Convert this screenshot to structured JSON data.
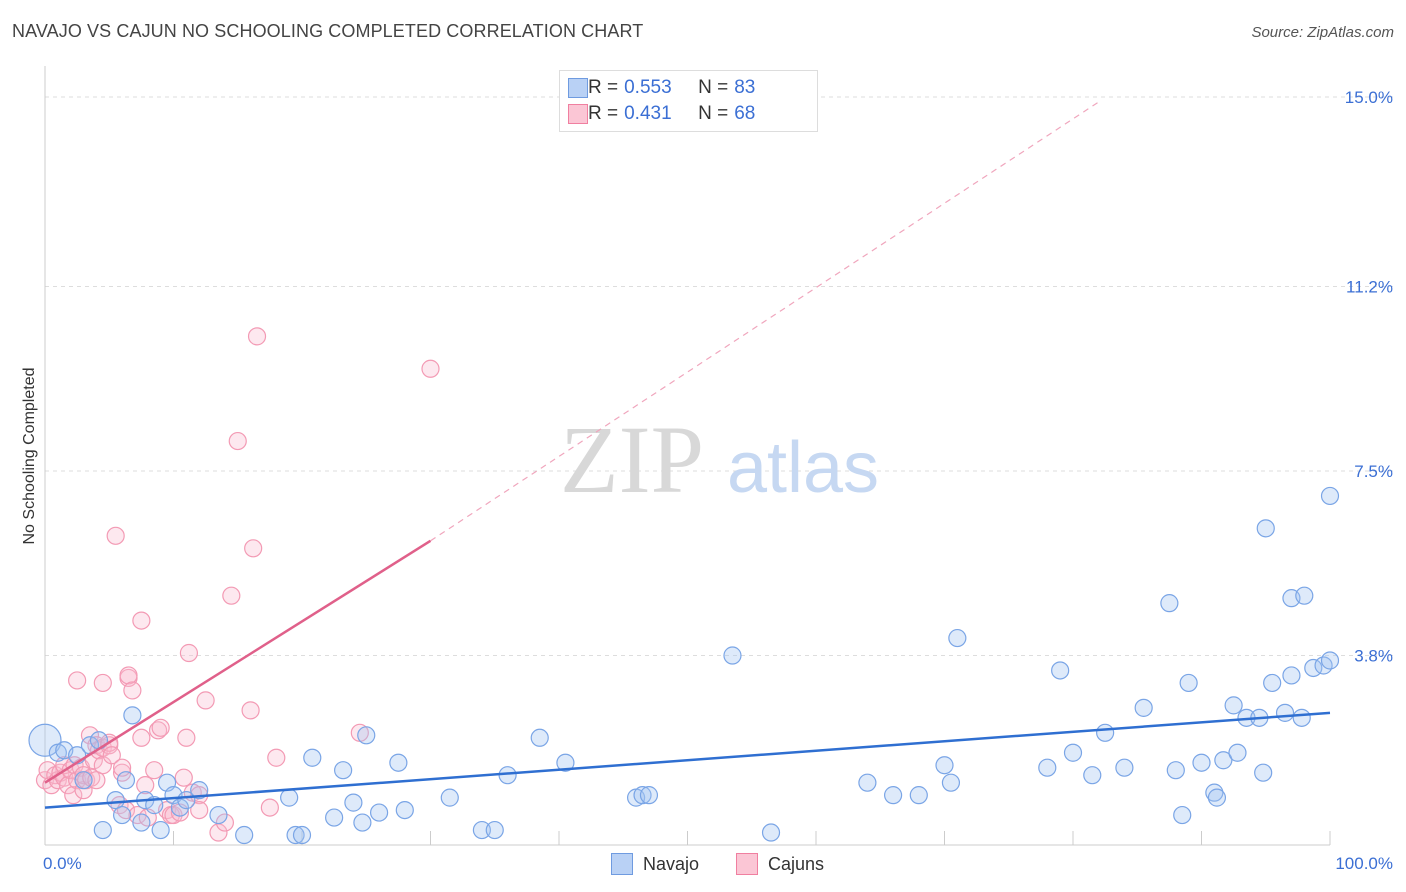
{
  "header": {
    "title": "NAVAJO VS CAJUN NO SCHOOLING COMPLETED CORRELATION CHART",
    "source": "Source: ZipAtlas.com"
  },
  "watermark": {
    "zip": "ZIP",
    "atlas": "atlas"
  },
  "legend_top": {
    "r_label": "R =",
    "n_label": "N =",
    "rows": [
      {
        "r": "0.553",
        "n": "83",
        "color": "#6f9be0",
        "fill": "#b9d1f5"
      },
      {
        "r": "0.431",
        "n": "68",
        "color": "#f07fa0",
        "fill": "#fbc6d5"
      }
    ]
  },
  "legend_bottom": {
    "navajo": "Navajo",
    "cajuns": "Cajuns"
  },
  "colors": {
    "navajo_stroke": "#7aa5e6",
    "navajo_fill": "rgba(160,195,240,0.35)",
    "navajo_line": "#2f6fd1",
    "cajun_stroke": "#f39ab4",
    "cajun_fill": "rgba(250,190,208,0.35)",
    "cajun_line": "#e0608a",
    "grid": "#dddddd",
    "tick_label": "#3b6fd4"
  },
  "chart_data": {
    "type": "scatter",
    "title": "NAVAJO VS CAJUN NO SCHOOLING COMPLETED CORRELATION CHART",
    "xlabel": "",
    "ylabel": "No Schooling Completed",
    "xlim": [
      0,
      100
    ],
    "ylim": [
      0,
      15.0
    ],
    "x_tick_labels": [
      "0.0%",
      "100.0%"
    ],
    "y_ticks": [
      3.8,
      7.5,
      11.2,
      15.0
    ],
    "y_tick_labels": [
      "3.8%",
      "7.5%",
      "11.2%",
      "15.0%"
    ],
    "series": [
      {
        "name": "Navajo",
        "r": 0.553,
        "n": 83,
        "trend": {
          "x": [
            0,
            100
          ],
          "y": [
            0.75,
            2.65
          ]
        },
        "points": [
          [
            0.0,
            2.1
          ],
          [
            1.0,
            1.85
          ],
          [
            1.5,
            1.9
          ],
          [
            2.5,
            1.8
          ],
          [
            3.0,
            1.3
          ],
          [
            3.5,
            2.0
          ],
          [
            4.2,
            2.1
          ],
          [
            4.5,
            0.3
          ],
          [
            5.5,
            0.9
          ],
          [
            6.0,
            0.6
          ],
          [
            6.3,
            1.3
          ],
          [
            6.8,
            2.6
          ],
          [
            7.5,
            0.45
          ],
          [
            7.8,
            0.9
          ],
          [
            8.5,
            0.8
          ],
          [
            9.0,
            0.3
          ],
          [
            9.5,
            1.25
          ],
          [
            10.0,
            1.0
          ],
          [
            10.5,
            0.75
          ],
          [
            11.0,
            0.9
          ],
          [
            12.0,
            1.1
          ],
          [
            13.5,
            0.6
          ],
          [
            15.5,
            0.2
          ],
          [
            19.0,
            0.95
          ],
          [
            19.5,
            0.2
          ],
          [
            20.0,
            0.2
          ],
          [
            20.8,
            1.75
          ],
          [
            22.5,
            0.55
          ],
          [
            23.2,
            1.5
          ],
          [
            24.0,
            0.85
          ],
          [
            24.7,
            0.45
          ],
          [
            25.0,
            2.2
          ],
          [
            26.0,
            0.65
          ],
          [
            27.5,
            1.65
          ],
          [
            28.0,
            0.7
          ],
          [
            31.5,
            0.95
          ],
          [
            34.0,
            0.3
          ],
          [
            35.0,
            0.3
          ],
          [
            36.0,
            1.4
          ],
          [
            38.5,
            2.15
          ],
          [
            40.5,
            1.65
          ],
          [
            46.0,
            0.95
          ],
          [
            46.5,
            1.0
          ],
          [
            47.0,
            1.0
          ],
          [
            53.5,
            3.8
          ],
          [
            56.5,
            0.25
          ],
          [
            64.0,
            1.25
          ],
          [
            66.0,
            1.0
          ],
          [
            68.0,
            1.0
          ],
          [
            70.0,
            1.6
          ],
          [
            70.5,
            1.25
          ],
          [
            71.0,
            4.15
          ],
          [
            78.0,
            1.55
          ],
          [
            79.0,
            3.5
          ],
          [
            80.0,
            1.85
          ],
          [
            81.5,
            1.4
          ],
          [
            82.5,
            2.25
          ],
          [
            84.0,
            1.55
          ],
          [
            85.5,
            2.75
          ],
          [
            87.5,
            4.85
          ],
          [
            88.0,
            1.5
          ],
          [
            88.5,
            0.6
          ],
          [
            89.0,
            3.25
          ],
          [
            90.0,
            1.65
          ],
          [
            91.0,
            1.05
          ],
          [
            91.2,
            0.95
          ],
          [
            91.7,
            1.7
          ],
          [
            92.5,
            2.8
          ],
          [
            92.8,
            1.85
          ],
          [
            93.5,
            2.55
          ],
          [
            94.5,
            2.55
          ],
          [
            94.8,
            1.45
          ],
          [
            95.0,
            6.35
          ],
          [
            95.5,
            3.25
          ],
          [
            96.5,
            2.65
          ],
          [
            97.0,
            4.95
          ],
          [
            97.8,
            2.55
          ],
          [
            98.0,
            5.0
          ],
          [
            98.7,
            3.55
          ],
          [
            99.5,
            3.6
          ],
          [
            100.0,
            3.7
          ],
          [
            100.0,
            7.0
          ],
          [
            97.0,
            3.4
          ]
        ]
      },
      {
        "name": "Cajuns",
        "r": 0.431,
        "n": 68,
        "trend": {
          "x": [
            0,
            30
          ],
          "y": [
            1.25,
            6.1
          ]
        },
        "trend_extension": {
          "x": [
            30,
            82
          ],
          "y": [
            6.1,
            14.9
          ]
        },
        "points": [
          [
            0.0,
            1.3
          ],
          [
            0.2,
            1.5
          ],
          [
            0.5,
            1.2
          ],
          [
            0.8,
            1.4
          ],
          [
            1.0,
            1.3
          ],
          [
            1.2,
            1.45
          ],
          [
            1.5,
            1.35
          ],
          [
            1.5,
            1.6
          ],
          [
            1.8,
            1.2
          ],
          [
            2.0,
            1.5
          ],
          [
            2.2,
            1.0
          ],
          [
            2.3,
            1.6
          ],
          [
            2.5,
            1.3
          ],
          [
            2.5,
            3.3
          ],
          [
            2.8,
            1.55
          ],
          [
            3.0,
            1.1
          ],
          [
            3.0,
            1.4
          ],
          [
            3.2,
            1.3
          ],
          [
            3.5,
            2.2
          ],
          [
            3.6,
            1.35
          ],
          [
            3.8,
            1.7
          ],
          [
            4.0,
            1.3
          ],
          [
            4.0,
            2.0
          ],
          [
            4.2,
            1.9
          ],
          [
            4.5,
            1.6
          ],
          [
            4.5,
            1.95
          ],
          [
            4.5,
            3.25
          ],
          [
            5.0,
            2.0
          ],
          [
            5.0,
            2.05
          ],
          [
            5.2,
            1.8
          ],
          [
            5.5,
            6.2
          ],
          [
            5.8,
            0.8
          ],
          [
            6.0,
            1.45
          ],
          [
            6.0,
            1.55
          ],
          [
            6.3,
            0.7
          ],
          [
            6.5,
            3.35
          ],
          [
            6.5,
            3.4
          ],
          [
            6.8,
            3.1
          ],
          [
            7.2,
            0.6
          ],
          [
            7.5,
            2.15
          ],
          [
            7.5,
            4.5
          ],
          [
            7.8,
            1.2
          ],
          [
            8.0,
            0.55
          ],
          [
            8.5,
            1.5
          ],
          [
            8.8,
            2.3
          ],
          [
            9.0,
            2.35
          ],
          [
            9.5,
            0.7
          ],
          [
            9.8,
            0.6
          ],
          [
            10.0,
            0.6
          ],
          [
            10.5,
            0.65
          ],
          [
            10.8,
            1.35
          ],
          [
            11.0,
            2.15
          ],
          [
            11.2,
            3.85
          ],
          [
            11.5,
            1.05
          ],
          [
            12.0,
            1.0
          ],
          [
            12.5,
            2.9
          ],
          [
            13.5,
            0.25
          ],
          [
            14.0,
            0.45
          ],
          [
            14.5,
            5.0
          ],
          [
            15.0,
            8.1
          ],
          [
            16.0,
            2.7
          ],
          [
            16.2,
            5.95
          ],
          [
            16.5,
            10.2
          ],
          [
            17.5,
            0.75
          ],
          [
            18.0,
            1.75
          ],
          [
            24.5,
            2.25
          ],
          [
            30.0,
            9.55
          ],
          [
            12.0,
            0.7
          ]
        ]
      }
    ]
  }
}
